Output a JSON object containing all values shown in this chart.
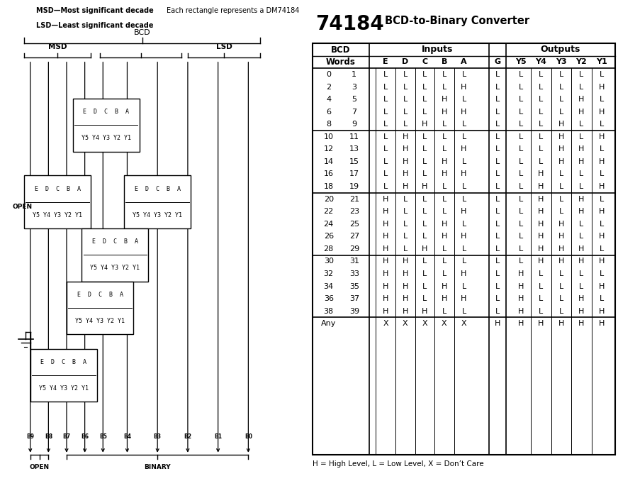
{
  "title_num": "74184",
  "title_text": "BCD-to-Binary Converter",
  "header_note": "Each rectangle represents a DM74184",
  "top_left_line1": "MSD—Most significant decade",
  "top_left_line2": "LSD—Least significant decade",
  "table_inputs_label": "Inputs",
  "table_outputs_label": "Outputs",
  "table_col_headers": [
    "E",
    "D",
    "C",
    "B",
    "A",
    "G",
    "Y5",
    "Y4",
    "Y3",
    "Y2",
    "Y1"
  ],
  "table_rows": [
    [
      "0",
      "1",
      "L",
      "L",
      "L",
      "L",
      "L",
      "L",
      "L",
      "L",
      "L",
      "L",
      "L"
    ],
    [
      "2",
      "3",
      "L",
      "L",
      "L",
      "L",
      "H",
      "L",
      "L",
      "L",
      "L",
      "L",
      "H"
    ],
    [
      "4",
      "5",
      "L",
      "L",
      "L",
      "H",
      "L",
      "L",
      "L",
      "L",
      "L",
      "H",
      "L"
    ],
    [
      "6",
      "7",
      "L",
      "L",
      "L",
      "H",
      "H",
      "L",
      "L",
      "L",
      "L",
      "H",
      "H"
    ],
    [
      "8",
      "9",
      "L",
      "L",
      "H",
      "L",
      "L",
      "L",
      "L",
      "L",
      "H",
      "L",
      "L"
    ],
    null,
    [
      "10",
      "11",
      "L",
      "H",
      "L",
      "L",
      "L",
      "L",
      "L",
      "L",
      "H",
      "L",
      "H"
    ],
    [
      "12",
      "13",
      "L",
      "H",
      "L",
      "L",
      "H",
      "L",
      "L",
      "L",
      "H",
      "H",
      "L"
    ],
    [
      "14",
      "15",
      "L",
      "H",
      "L",
      "H",
      "L",
      "L",
      "L",
      "L",
      "H",
      "H",
      "H"
    ],
    [
      "16",
      "17",
      "L",
      "H",
      "L",
      "H",
      "H",
      "L",
      "L",
      "H",
      "L",
      "L",
      "L"
    ],
    [
      "18",
      "19",
      "L",
      "H",
      "H",
      "L",
      "L",
      "L",
      "L",
      "H",
      "L",
      "L",
      "H"
    ],
    null,
    [
      "20",
      "21",
      "H",
      "L",
      "L",
      "L",
      "L",
      "L",
      "L",
      "H",
      "L",
      "H",
      "L"
    ],
    [
      "22",
      "23",
      "H",
      "L",
      "L",
      "L",
      "H",
      "L",
      "L",
      "H",
      "L",
      "H",
      "H"
    ],
    [
      "24",
      "25",
      "H",
      "L",
      "L",
      "H",
      "L",
      "L",
      "L",
      "H",
      "H",
      "L",
      "L"
    ],
    [
      "26",
      "27",
      "H",
      "L",
      "L",
      "H",
      "H",
      "L",
      "L",
      "H",
      "H",
      "L",
      "H"
    ],
    [
      "28",
      "29",
      "H",
      "L",
      "H",
      "L",
      "L",
      "L",
      "L",
      "H",
      "H",
      "H",
      "L"
    ],
    null,
    [
      "30",
      "31",
      "H",
      "H",
      "L",
      "L",
      "L",
      "L",
      "L",
      "H",
      "H",
      "H",
      "H"
    ],
    [
      "32",
      "33",
      "H",
      "H",
      "L",
      "L",
      "H",
      "L",
      "H",
      "L",
      "L",
      "L",
      "L"
    ],
    [
      "34",
      "35",
      "H",
      "H",
      "L",
      "H",
      "L",
      "L",
      "H",
      "L",
      "L",
      "L",
      "H"
    ],
    [
      "36",
      "37",
      "H",
      "H",
      "L",
      "H",
      "H",
      "L",
      "H",
      "L",
      "L",
      "H",
      "L"
    ],
    [
      "38",
      "39",
      "H",
      "H",
      "H",
      "L",
      "L",
      "L",
      "H",
      "L",
      "L",
      "H",
      "H"
    ],
    null,
    [
      "Any",
      "",
      "X",
      "X",
      "X",
      "X",
      "X",
      "H",
      "H",
      "H",
      "H",
      "H",
      "H"
    ]
  ],
  "footnote": "H = High Level, L = Low Level, X = Don’t Care",
  "bg_color": "#ffffff"
}
